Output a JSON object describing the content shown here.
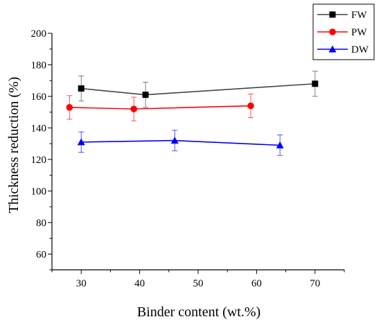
{
  "chart_data": {
    "type": "line",
    "title": "",
    "xlabel": "Binder content (wt.%)",
    "ylabel": "Thickness reduction (%)",
    "xlim": [
      25,
      75
    ],
    "ylim": [
      50,
      200
    ],
    "xticks": [
      30,
      40,
      50,
      60,
      70
    ],
    "yticks": [
      60,
      80,
      100,
      120,
      140,
      160,
      180,
      200
    ],
    "grid": false,
    "legend_position": "top-right",
    "series": [
      {
        "name": "FW",
        "color": "#000000",
        "line_color": "#444444",
        "marker": "square",
        "x": [
          30,
          41,
          70
        ],
        "y": [
          165,
          161,
          168
        ],
        "error": [
          8,
          8,
          8
        ]
      },
      {
        "name": "PW",
        "color": "#ff0000",
        "line_color": "#ff0000",
        "marker": "circle",
        "x": [
          28,
          39,
          59
        ],
        "y": [
          153,
          152,
          154
        ],
        "error": [
          7.5,
          7.5,
          7.5
        ]
      },
      {
        "name": "DW",
        "color": "#0000ff",
        "line_color": "#0000ff",
        "marker": "triangle",
        "x": [
          30,
          46,
          64
        ],
        "y": [
          131,
          132,
          129
        ],
        "error": [
          6.5,
          6.5,
          6.5
        ]
      }
    ]
  }
}
